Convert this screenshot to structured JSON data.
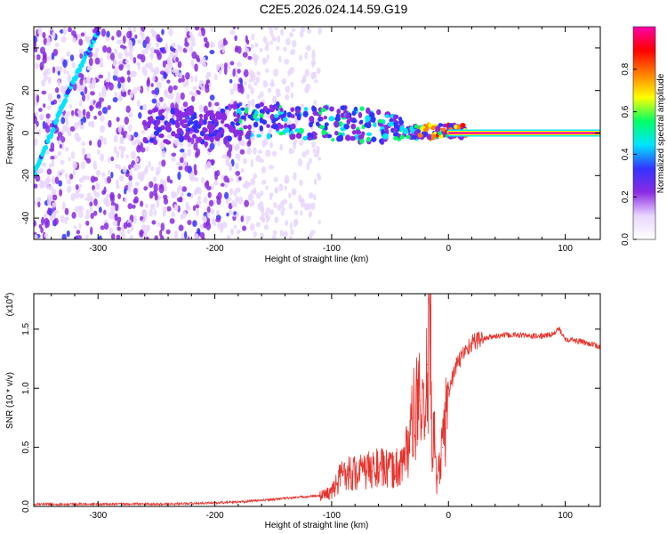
{
  "title": "C2E5.2026.024.14.59.G19",
  "chart_data": [
    {
      "type": "heatmap",
      "title": "C2E5.2026.024.14.59.G19",
      "xlabel": "Height of straight line (km)",
      "ylabel": "Frequency (Hz)",
      "xlim": [
        -355,
        130
      ],
      "ylim": [
        -50,
        50
      ],
      "xticks": [
        -300,
        -200,
        -100,
        0,
        100
      ],
      "xtick_labels": [
        "-300",
        "-200",
        "-100",
        "0",
        "100"
      ],
      "yticks": [
        -40,
        -20,
        0,
        20,
        40
      ],
      "ytick_labels": [
        "-40",
        "-20",
        "0",
        "20",
        "40"
      ],
      "colorbar": {
        "label": "Normalized spectral amplitude",
        "range": [
          0.0,
          1.0
        ],
        "ticks": [
          0.0,
          0.2,
          0.4,
          0.6,
          0.8
        ],
        "tick_labels": [
          "0.0",
          "0.2",
          "0.4",
          "0.6",
          "0.8"
        ],
        "colormap": [
          "#ffffff",
          "#e9d6ff",
          "#8a2be2",
          "#3333ff",
          "#00e5ff",
          "#00ff66",
          "#ffff00",
          "#ff7f00",
          "#ff0000",
          "#ff00aa"
        ]
      },
      "features": {
        "scattered_noise_x_range": [
          -355,
          -170
        ],
        "sparse_noise_x_range": [
          -170,
          -110
        ],
        "drifting_line": {
          "x": [
            -355,
            -325,
            -300
          ],
          "y": [
            -20,
            20,
            48
          ]
        },
        "central_band": {
          "x": [
            -260,
            -200,
            -160,
            -120,
            -80,
            -50,
            -30,
            -10,
            15
          ],
          "y": [
            3,
            4,
            6,
            5,
            4,
            2,
            0,
            1,
            1
          ]
        },
        "steady_line": {
          "x_start": 0,
          "x_end": 130,
          "y": 0,
          "amplitude": 1.0
        }
      },
      "grid": false
    },
    {
      "type": "line",
      "xlabel": "Height of straight line (km)",
      "ylabel": "SNR (10 * v/v)",
      "y_scale_label": "(x10",
      "y_scale_exponent": "4",
      "y_scale_close": ")",
      "xlim": [
        -355,
        130
      ],
      "ylim": [
        0,
        1.8
      ],
      "xticks": [
        -300,
        -200,
        -100,
        0,
        100
      ],
      "xtick_labels": [
        "-300",
        "-200",
        "-100",
        "0",
        "100"
      ],
      "yticks": [
        0,
        0.5,
        1.0,
        1.5
      ],
      "ytick_labels": [
        "0.0",
        "0.5",
        "1.0",
        "1.5"
      ],
      "series": [
        {
          "name": "SNR",
          "color": "#e8302a",
          "x": [
            -355,
            -300,
            -250,
            -200,
            -175,
            -150,
            -125,
            -110,
            -100,
            -95,
            -90,
            -80,
            -70,
            -60,
            -50,
            -40,
            -35,
            -30,
            -25,
            -20,
            -18,
            -16,
            -15,
            -14,
            -12,
            -10,
            -5,
            0,
            5,
            10,
            15,
            20,
            25,
            30,
            40,
            50,
            60,
            70,
            80,
            90,
            95,
            100,
            110,
            120,
            130
          ],
          "y": [
            0.02,
            0.02,
            0.02,
            0.03,
            0.04,
            0.06,
            0.08,
            0.09,
            0.12,
            0.2,
            0.3,
            0.28,
            0.3,
            0.33,
            0.3,
            0.35,
            0.5,
            0.75,
            0.9,
            0.6,
            1.2,
            1.4,
            1.85,
            0.3,
            0.7,
            0.2,
            0.5,
            0.95,
            1.15,
            1.25,
            1.33,
            1.38,
            1.41,
            1.42,
            1.44,
            1.45,
            1.45,
            1.44,
            1.44,
            1.46,
            1.5,
            1.42,
            1.4,
            1.38,
            1.35
          ]
        }
      ],
      "grid": false
    }
  ]
}
